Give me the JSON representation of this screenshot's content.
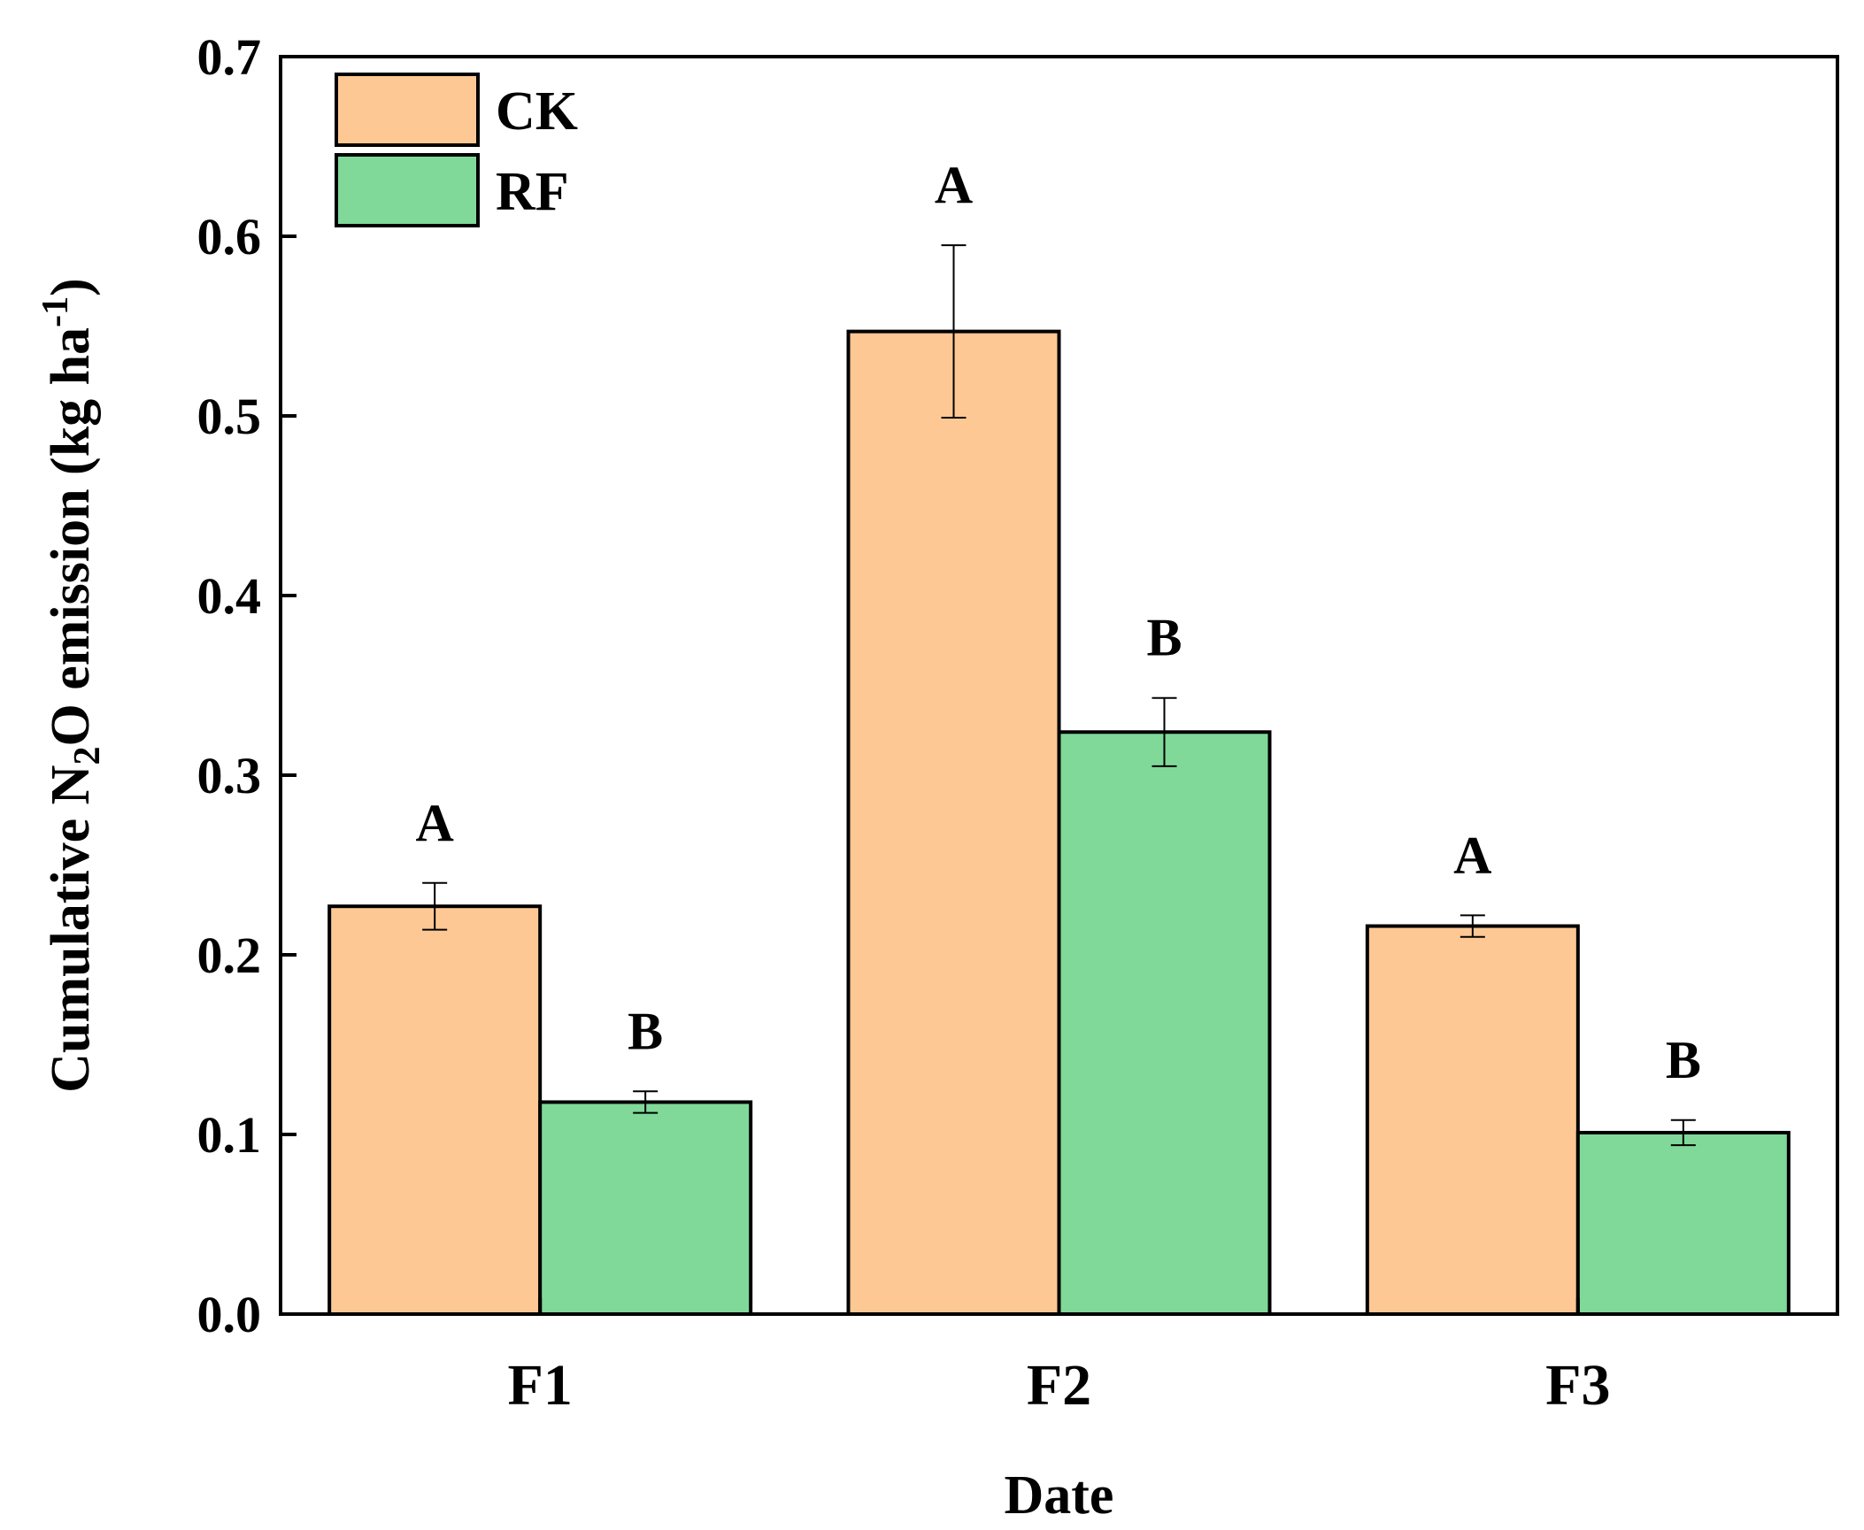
{
  "chart_data": {
    "type": "bar",
    "title": "",
    "xlabel": "Date",
    "ylabel": {
      "prefix": "Cumulative N",
      "sub": "2",
      "middle": "O emission (kg ha",
      "sup": "-1",
      "suffix": ")"
    },
    "categories": [
      "F1",
      "F2",
      "F3"
    ],
    "ylim": [
      0,
      0.7
    ],
    "yticks": [
      "0.0",
      "0.1",
      "0.2",
      "0.3",
      "0.4",
      "0.5",
      "0.6",
      "0.7"
    ],
    "ytick_values": [
      0,
      0.1,
      0.2,
      0.3,
      0.4,
      0.5,
      0.6,
      0.7
    ],
    "grid": false,
    "legend_position": "top-left",
    "series": [
      {
        "name": "CK",
        "color": "#FEC895",
        "values": [
          0.227,
          0.547,
          0.216
        ],
        "errors": [
          0.013,
          0.048,
          0.006
        ],
        "letters": [
          "A",
          "A",
          "A"
        ]
      },
      {
        "name": "RF",
        "color": "#80D999",
        "values": [
          0.118,
          0.324,
          0.101
        ],
        "errors": [
          0.006,
          0.019,
          0.007
        ],
        "letters": [
          "B",
          "B",
          "B"
        ]
      }
    ]
  }
}
